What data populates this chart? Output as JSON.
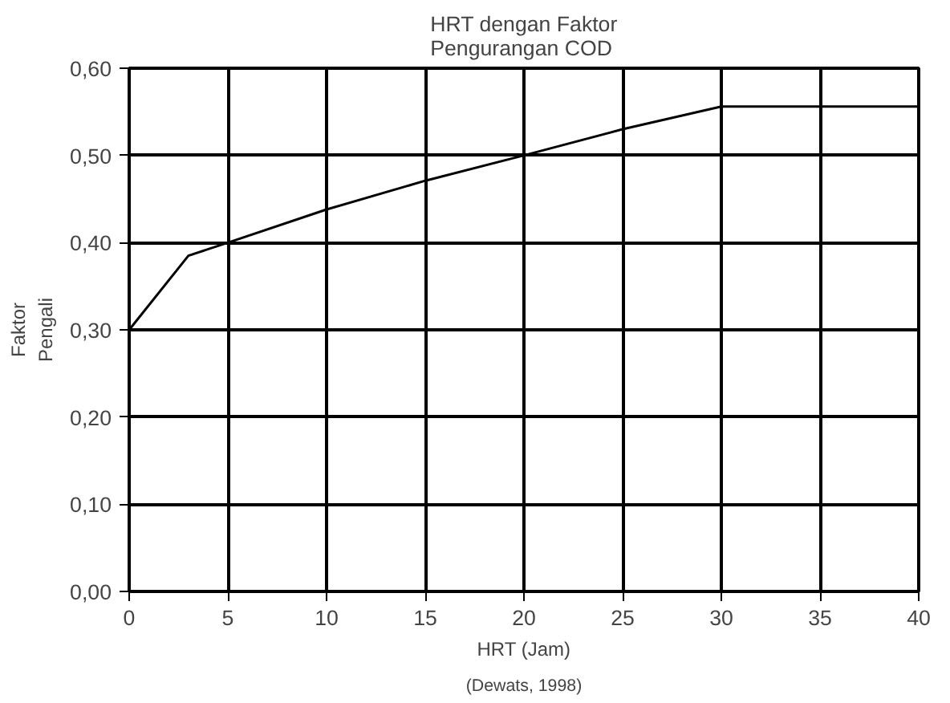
{
  "chart_data": {
    "type": "line",
    "title": "HRT dengan Faktor\nPengurangan COD",
    "xlabel": "HRT (Jam)",
    "ylabel": "Faktor\nPengali",
    "annotations": [
      "(Dewats, 1998)"
    ],
    "x": [
      0,
      3,
      5,
      10,
      15,
      20,
      25,
      30,
      40
    ],
    "series": [
      {
        "color": "#000000",
        "values": [
          0.3,
          0.385,
          0.4,
          0.438,
          0.471,
          0.5,
          0.53,
          0.556,
          0.556
        ]
      }
    ],
    "xlim": [
      0,
      40
    ],
    "xticks": [
      0,
      5,
      10,
      15,
      20,
      25,
      30,
      35,
      40
    ],
    "ylim": [
      0,
      0.6
    ],
    "yticks": [
      {
        "value": 0,
        "label": "0,00"
      },
      {
        "value": 0.1,
        "label": "0,10"
      },
      {
        "value": 0.2,
        "label": "0,20"
      },
      {
        "value": 0.3,
        "label": "0,30"
      },
      {
        "value": 0.4,
        "label": "0,40"
      },
      {
        "value": 0.5,
        "label": "0,50"
      },
      {
        "value": 0.6,
        "label": "0,60"
      }
    ],
    "grid": true,
    "marker": "none",
    "line_style": "solid"
  }
}
